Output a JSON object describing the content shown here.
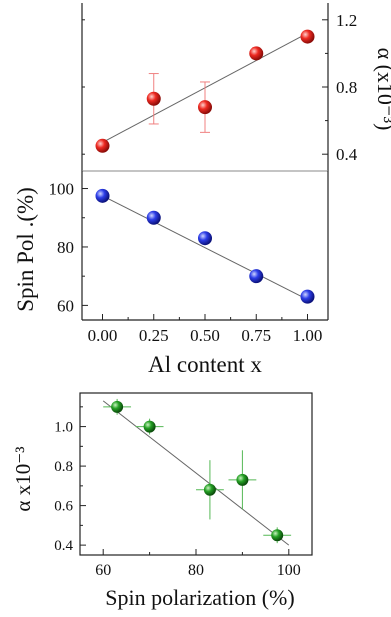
{
  "chart_data": [
    {
      "type": "scatter",
      "panel": "top",
      "xlabel": "",
      "ylabel_right": "α (x10⁻³)",
      "ylim": [
        0.3,
        1.3
      ],
      "xlim": [
        -0.1,
        1.1
      ],
      "yticks": [
        "0.4",
        "0.8",
        "1.2"
      ],
      "ytick_values": [
        0.4,
        0.8,
        1.2
      ],
      "axis_side": "right",
      "grid": false,
      "series": [
        {
          "color": "#e8201c",
          "x": [
            0.0,
            0.25,
            0.5,
            0.75,
            1.0
          ],
          "y": [
            0.45,
            0.73,
            0.68,
            1.0,
            1.1
          ],
          "yerr": [
            0.03,
            0.15,
            0.15,
            0.03,
            0.03
          ],
          "fit": [
            [
              0.0,
              0.47
            ],
            [
              1.0,
              1.12
            ]
          ]
        }
      ]
    },
    {
      "type": "scatter",
      "panel": "middle",
      "xlabel": "Al content x",
      "ylabel": "Spin Pol .(%)",
      "xlim": [
        -0.1,
        1.1
      ],
      "ylim": [
        55,
        106
      ],
      "xticks": [
        "0.00",
        "0.25",
        "0.50",
        "0.75",
        "1.00"
      ],
      "xtick_values": [
        0.0,
        0.25,
        0.5,
        0.75,
        1.0
      ],
      "yticks": [
        "60",
        "80",
        "100"
      ],
      "ytick_values": [
        60,
        80,
        100
      ],
      "grid": false,
      "series": [
        {
          "color": "#1f2fd8",
          "x": [
            0.0,
            0.25,
            0.5,
            0.75,
            1.0
          ],
          "y": [
            97.5,
            90,
            83,
            70,
            63
          ],
          "yerr": [
            1.5,
            2,
            1.5,
            2,
            1.5
          ],
          "fit": [
            [
              0.0,
              97.5
            ],
            [
              1.0,
              62
            ]
          ]
        }
      ]
    },
    {
      "type": "scatter",
      "panel": "bottom",
      "xlabel": "Spin polarization (%)",
      "ylabel": "α x10⁻³",
      "xlim": [
        55,
        105
      ],
      "ylim": [
        0.35,
        1.17
      ],
      "xticks": [
        "60",
        "80",
        "100"
      ],
      "xtick_values": [
        60,
        80,
        100
      ],
      "yticks": [
        "0.4",
        "0.6",
        "0.8",
        "1.0"
      ],
      "ytick_values": [
        0.4,
        0.6,
        0.8,
        1.0
      ],
      "grid": false,
      "series": [
        {
          "color": "#1a8a1a",
          "x": [
            63,
            70,
            83,
            90,
            97.5
          ],
          "y": [
            1.1,
            1.0,
            0.68,
            0.73,
            0.45
          ],
          "xerr": [
            3,
            3,
            3,
            3,
            3
          ],
          "yerr": [
            0.04,
            0.04,
            0.15,
            0.15,
            0.04
          ],
          "fit": [
            [
              60,
              1.13
            ],
            [
              100,
              0.4
            ]
          ]
        }
      ]
    }
  ]
}
